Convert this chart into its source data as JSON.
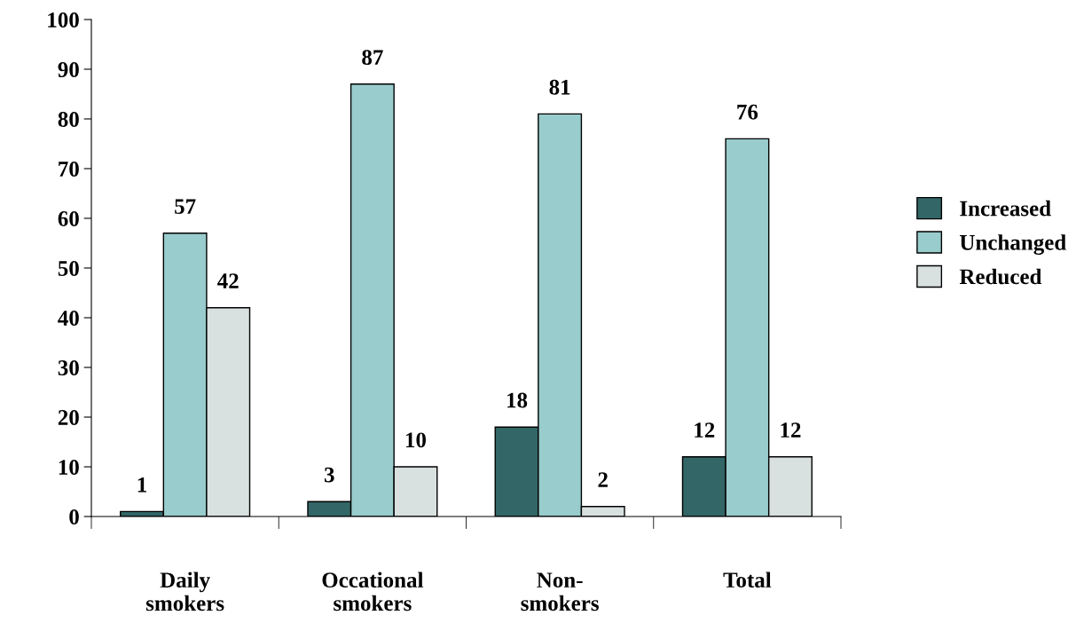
{
  "chart_data": {
    "type": "bar",
    "categories": [
      "Daily\nsmokers",
      "Occational\nsmokers",
      "Non-\nsmokers",
      "Total"
    ],
    "series": [
      {
        "name": "Increased",
        "color": "#336666",
        "values": [
          1,
          3,
          18,
          12
        ]
      },
      {
        "name": "Unchanged",
        "color": "#99cccc",
        "values": [
          57,
          87,
          81,
          76
        ]
      },
      {
        "name": "Reduced",
        "color": "#d9e0e0",
        "values": [
          42,
          10,
          2,
          12
        ]
      }
    ],
    "ylim": [
      0,
      100
    ],
    "yticks": [
      0,
      10,
      20,
      30,
      40,
      50,
      60,
      70,
      80,
      90,
      100
    ],
    "grid": false,
    "legend": "right",
    "data_labels": true
  }
}
